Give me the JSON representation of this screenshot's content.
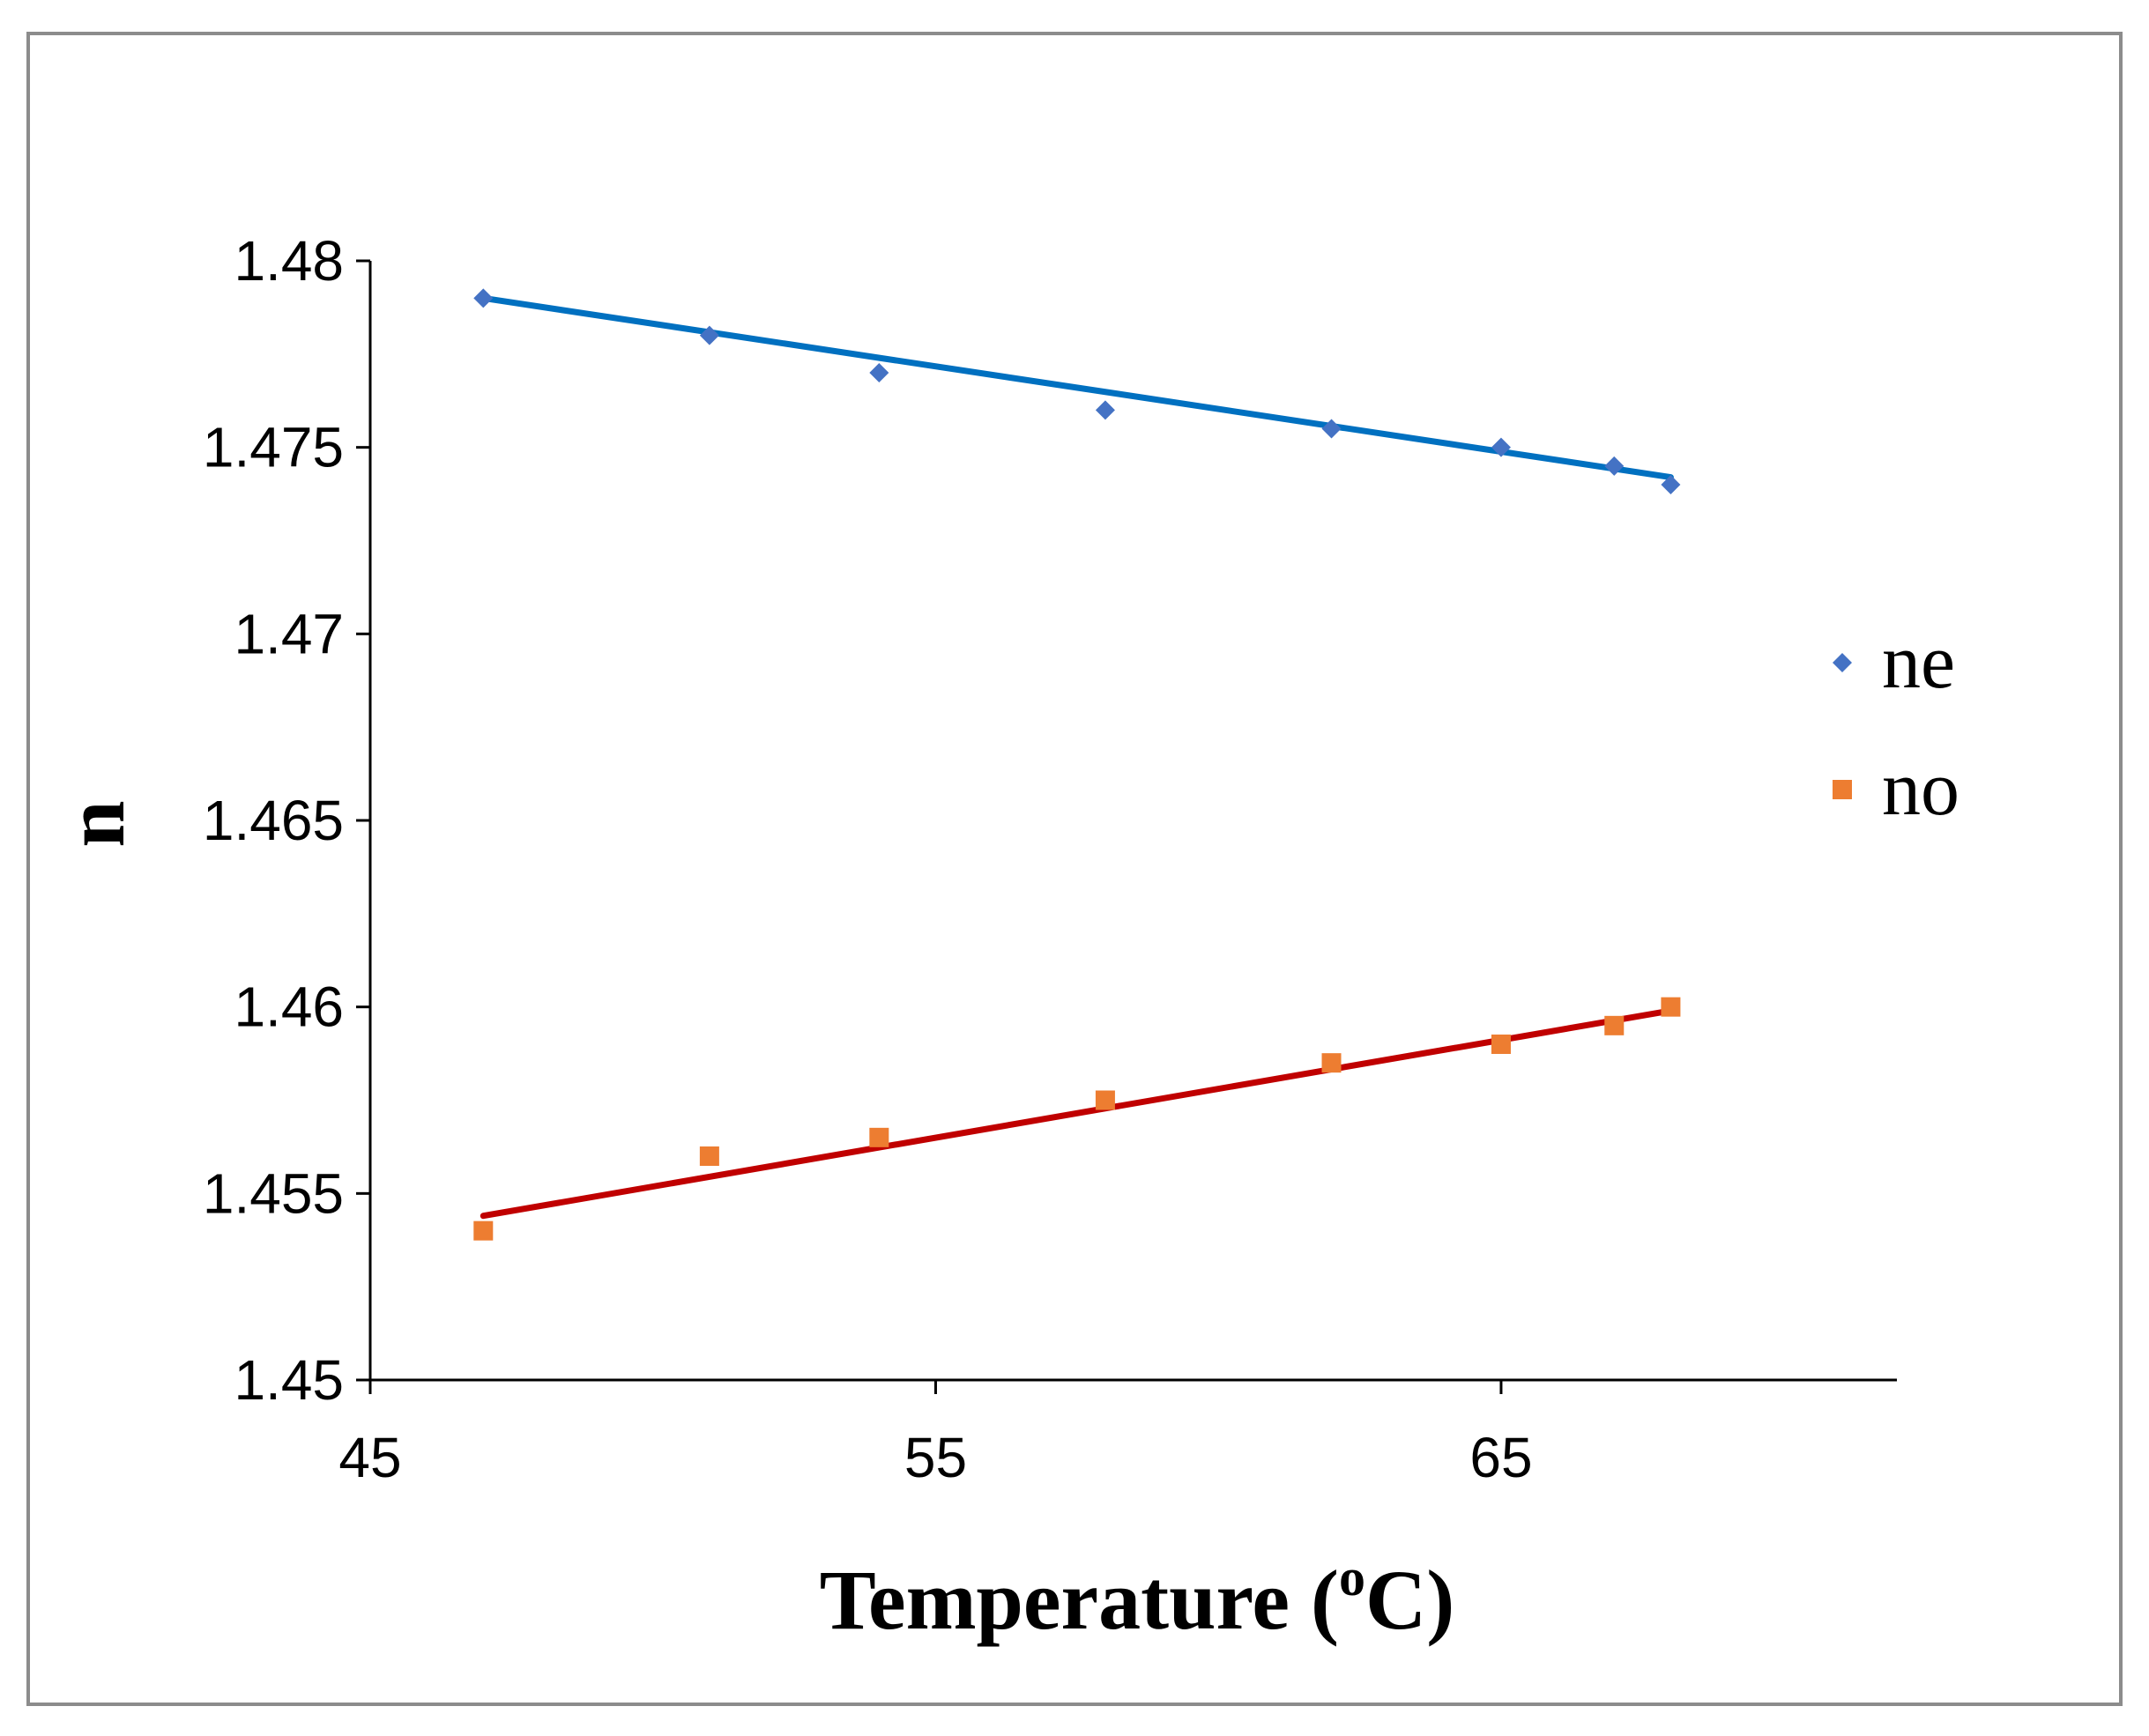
{
  "chart_data": {
    "type": "scatter",
    "title": "",
    "xlabel": "Temperature (",
    "xlabel_sup": "o",
    "xlabel_tail": "C)",
    "ylabel": "n",
    "xlim": [
      45,
      72
    ],
    "ylim": [
      1.45,
      1.48
    ],
    "x_ticks": [
      45,
      55,
      65
    ],
    "y_ticks": [
      1.45,
      1.455,
      1.46,
      1.465,
      1.47,
      1.475,
      1.48
    ],
    "y_tick_labels": [
      "1.45",
      "1.455",
      "1.46",
      "1.465",
      "1.47",
      "1.475",
      "1.48"
    ],
    "grid": false,
    "legend_position": "right",
    "series": [
      {
        "name": "ne",
        "marker": "diamond",
        "color": "#4472C4",
        "trend_color": "#0070C0",
        "x": [
          47,
          51,
          54,
          58,
          62,
          65,
          67,
          68
        ],
        "y": [
          1.479,
          1.478,
          1.477,
          1.476,
          1.4755,
          1.475,
          1.4745,
          1.474
        ],
        "trendline": [
          [
            47,
            1.479
          ],
          [
            68,
            1.4742
          ]
        ]
      },
      {
        "name": "no",
        "marker": "square",
        "color": "#ED7D31",
        "trend_color": "#C00000",
        "x": [
          47,
          51,
          54,
          58,
          62,
          65,
          67,
          68
        ],
        "y": [
          1.454,
          1.456,
          1.4565,
          1.4575,
          1.4585,
          1.459,
          1.4595,
          1.46
        ],
        "trendline": [
          [
            47,
            1.4544
          ],
          [
            68,
            1.4599
          ]
        ]
      }
    ]
  }
}
